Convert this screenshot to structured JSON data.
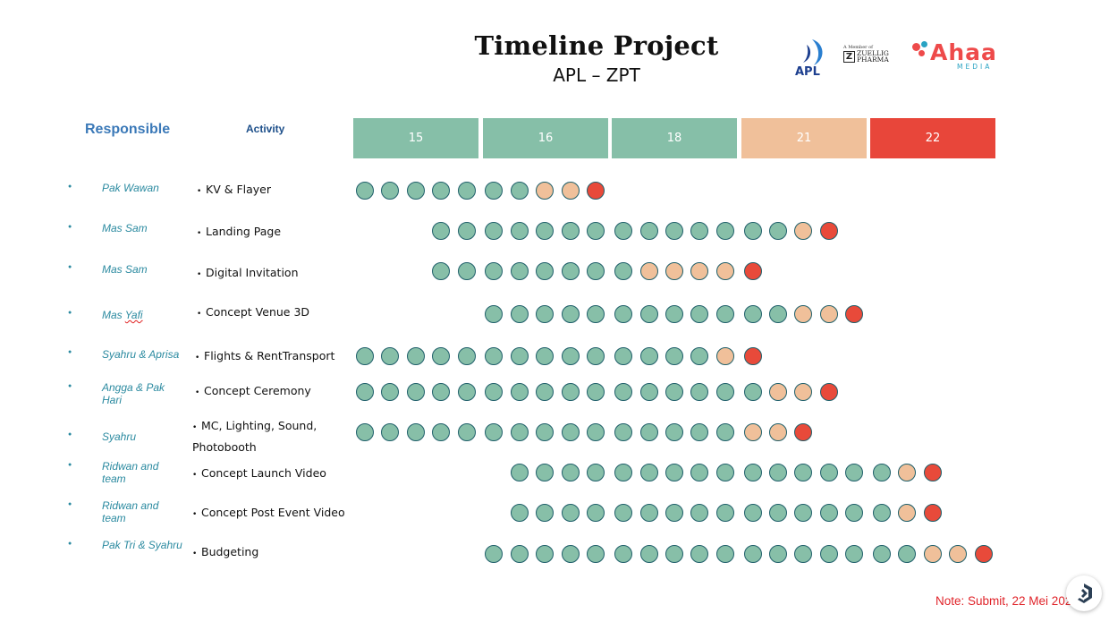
{
  "header": {
    "title": "Timeline Project",
    "subtitle": "APL – ZPT"
  },
  "logos": {
    "apl": {
      "text": "APL",
      "color": "#1d3f8f"
    },
    "zuellig": {
      "small": "A Member of",
      "line1": "ZUELLIG",
      "line2": "PHARMA"
    },
    "ahaa": {
      "text": "Ahaa",
      "sub": "MEDIA",
      "color": "#ee4a4a"
    }
  },
  "columns": {
    "responsible": "Responsible",
    "activity": "Activity"
  },
  "dates": [
    {
      "label": "15",
      "color": "#86bfa8"
    },
    {
      "label": "16",
      "color": "#86bfa8"
    },
    {
      "label": "18",
      "color": "#86bfa8"
    },
    {
      "label": "21",
      "color": "#f0c09a"
    },
    {
      "label": "22",
      "color": "#e8463a"
    }
  ],
  "status_colors": {
    "g": "#87bfa8",
    "p": "#f0c09a",
    "r": "#e84a3a"
  },
  "rows": [
    {
      "responsible": "Pak Wawan",
      "activity": "KV & Flayer",
      "start": 0,
      "status": "gggggggppr"
    },
    {
      "responsible": "Mas Sam",
      "activity": "Landing Page",
      "start": 3,
      "status": "ggggggggggggggpr"
    },
    {
      "responsible": "Mas Sam",
      "activity": "Digital Invitation",
      "start": 3,
      "status": "ggggggggppppr"
    },
    {
      "responsible_parts": [
        "Mas ",
        "Yafi"
      ],
      "responsible": "Mas Yafi",
      "activity": "Concept Venue 3D",
      "start": 5,
      "status": "ggggggggggggppr"
    },
    {
      "responsible": "Syahru & Aprisa",
      "activity": "Flights & RentTransport",
      "start": 0,
      "status": "ggggggggggggggpr"
    },
    {
      "responsible": "Angga & Pak Hari",
      "activity": "Concept Ceremony",
      "start": 0,
      "status": "ggggggggggggggggppr"
    },
    {
      "responsible": "Syahru",
      "activity": "MC, Lighting, Sound, Photobooth",
      "start": 0,
      "status": "gggggggggggggggppr"
    },
    {
      "responsible": "Ridwan and team",
      "activity": "Concept Launch Video",
      "start": 6,
      "status": "gggggggggggggggpr"
    },
    {
      "responsible": "Ridwan and team",
      "activity": "Concept Post Event Video",
      "start": 6,
      "status": "gggggggggggggggpr"
    },
    {
      "responsible": "Pak Tri & Syahru",
      "activity": "Budgeting",
      "start": 5,
      "status": "gggggggggggggggggppr"
    }
  ],
  "note": "Note: Submit, 22 Mei 2025",
  "fab": {
    "icon": "assistant-icon"
  }
}
